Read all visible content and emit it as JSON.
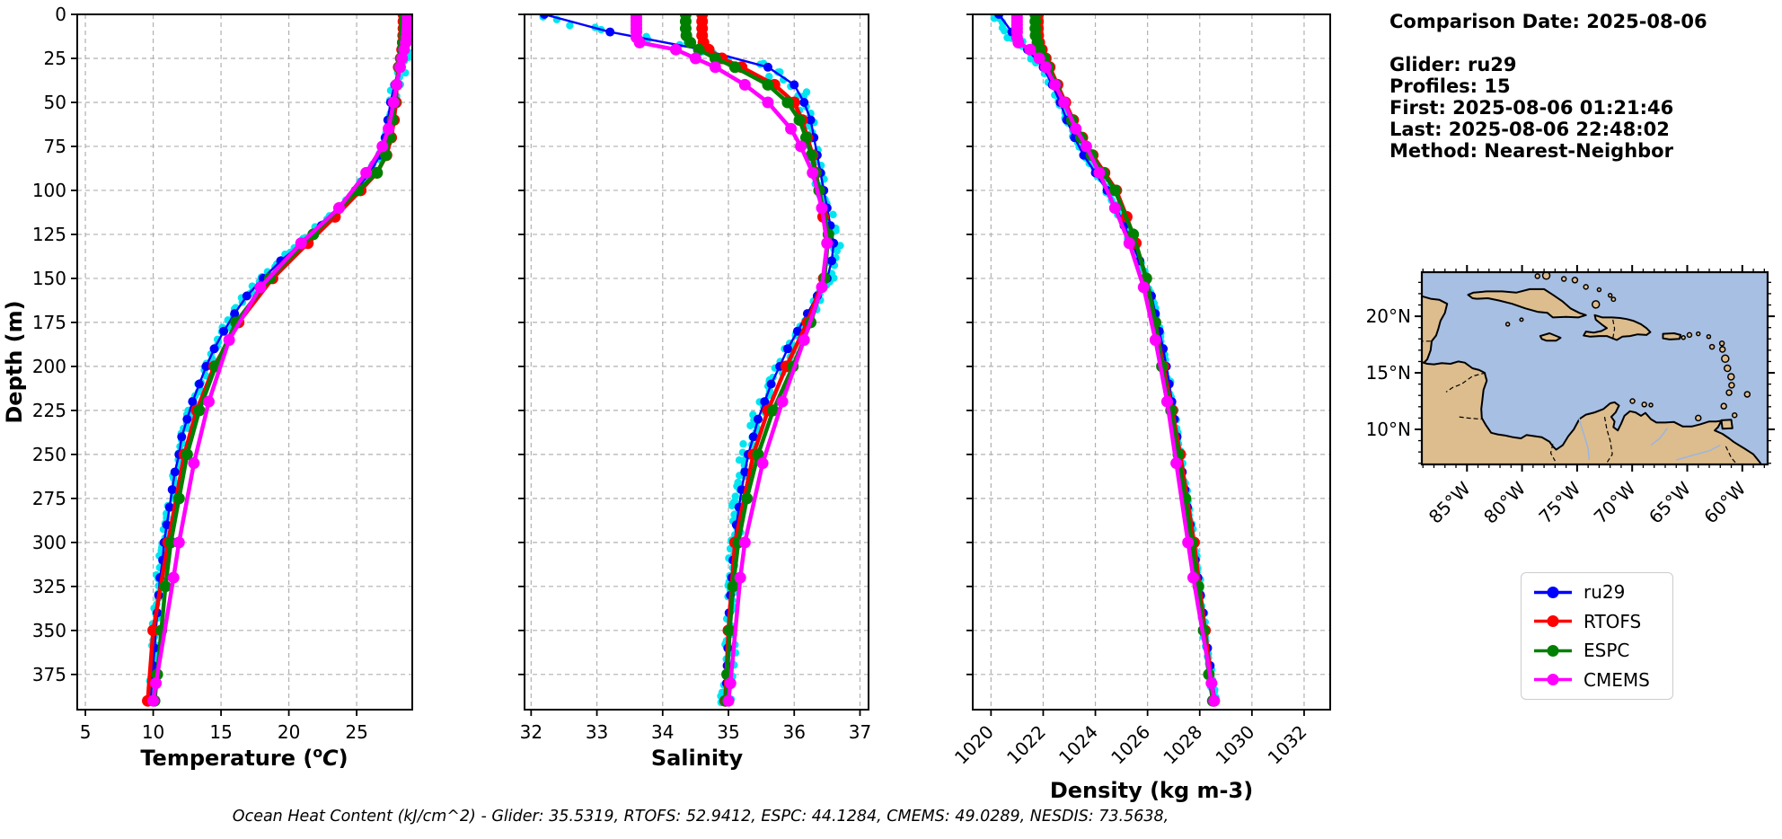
{
  "info": {
    "lines": [
      "Comparison Date: 2025-08-06",
      "",
      "Glider: ru29",
      "Profiles: 15",
      "First: 2025-08-06 01:21:46",
      "Last: 2025-08-06 22:48:02",
      "Method: Nearest-Neighbor"
    ]
  },
  "legend": {
    "items": [
      {
        "label": "ru29",
        "color": "#0000ff"
      },
      {
        "label": "RTOFS",
        "color": "#ff0000"
      },
      {
        "label": "ESPC",
        "color": "#008000"
      },
      {
        "label": "CMEMS",
        "color": "#ff00ff"
      }
    ]
  },
  "footer": {
    "text": "Ocean Heat Content (kJ/cm^2) - Glider: 35.5319,  RTOFS: 52.9412,  ESPC: 44.1284,  CMEMS: 49.0289,  NESDIS: 73.5638,"
  },
  "style": {
    "grid_color": "#b0b0b0",
    "spine_color": "#000000",
    "scatter_color": "#00e5f0"
  },
  "chart_data": [
    {
      "type": "line",
      "id": "temperature",
      "title_parts": [
        {
          "t": "Temperature ("
        },
        {
          "t": "o",
          "sup": true
        },
        {
          "t": "C",
          "italic": true
        },
        {
          "t": ")"
        }
      ],
      "xlim": [
        4.4,
        29.1
      ],
      "xticks": [
        5,
        10,
        15,
        20,
        25
      ],
      "xtick_labels": [
        "5",
        "10",
        "15",
        "20",
        "25"
      ],
      "xtick_rotation": 0,
      "ylabel": "Depth (m)",
      "ylim": [
        0,
        395
      ],
      "yticks": [
        0,
        25,
        50,
        75,
        100,
        125,
        150,
        175,
        200,
        225,
        250,
        275,
        300,
        325,
        350,
        375
      ],
      "ytick_labels": [
        "0",
        "25",
        "50",
        "75",
        "100",
        "125",
        "150",
        "175",
        "200",
        "225",
        "250",
        "275",
        "300",
        "325",
        "350",
        "375"
      ],
      "grid": true,
      "scatter": {
        "name": "glider-raw-points",
        "color": "#00e5f0",
        "amp": 0.22,
        "surface_amp": 0.45
      },
      "series": [
        {
          "name": "ru29",
          "color": "#0000ff",
          "lw": 2.4,
          "mr": 5,
          "depths": [
            0,
            10,
            20,
            30,
            40,
            50,
            60,
            70,
            80,
            90,
            100,
            110,
            120,
            130,
            140,
            150,
            160,
            170,
            180,
            190,
            200,
            210,
            220,
            230,
            240,
            250,
            260,
            270,
            280,
            290,
            300,
            310,
            320,
            330,
            340,
            350,
            360,
            370,
            380,
            390
          ],
          "values": [
            29.1,
            28.9,
            28.5,
            28.1,
            27.8,
            27.5,
            27.3,
            27.1,
            26.7,
            26.0,
            24.9,
            23.7,
            22.4,
            21.0,
            19.4,
            18.1,
            16.9,
            16.0,
            15.2,
            14.5,
            13.9,
            13.4,
            12.9,
            12.5,
            12.1,
            11.9,
            11.6,
            11.4,
            11.2,
            11.0,
            10.8,
            10.7,
            10.5,
            10.4,
            10.3,
            10.2,
            10.1,
            10.0,
            9.9,
            9.8
          ]
        },
        {
          "name": "RTOFS",
          "color": "#ff0000",
          "lw": 4.5,
          "mr": 6.5,
          "depths": [
            0,
            4,
            8,
            12,
            16,
            20,
            25,
            30,
            40,
            50,
            60,
            70,
            80,
            90,
            100,
            115,
            130,
            150,
            175,
            200,
            225,
            250,
            300,
            350,
            390
          ],
          "values": [
            28.45,
            28.45,
            28.45,
            28.43,
            28.4,
            28.35,
            28.25,
            28.1,
            27.95,
            27.9,
            27.75,
            27.55,
            27.2,
            26.5,
            25.3,
            23.4,
            21.4,
            18.8,
            16.3,
            14.5,
            13.2,
            12.3,
            11.1,
            10.0,
            9.6
          ]
        },
        {
          "name": "ESPC",
          "color": "#008000",
          "lw": 4.5,
          "mr": 6.5,
          "depths": [
            0,
            4,
            8,
            12,
            16,
            20,
            25,
            30,
            40,
            50,
            60,
            70,
            80,
            90,
            100,
            125,
            150,
            175,
            200,
            225,
            250,
            275,
            300,
            325,
            350,
            375,
            390
          ],
          "values": [
            28.55,
            28.55,
            28.52,
            28.5,
            28.45,
            28.4,
            28.3,
            28.15,
            27.95,
            27.8,
            27.65,
            27.45,
            27.15,
            26.5,
            25.1,
            21.8,
            18.6,
            16.1,
            14.6,
            13.4,
            12.5,
            11.9,
            11.3,
            10.9,
            10.6,
            10.3,
            10.1
          ]
        },
        {
          "name": "CMEMS",
          "color": "#ff00ff",
          "lw": 4.5,
          "mr": 6.5,
          "depths": [
            0,
            2,
            4,
            6,
            8,
            10,
            13,
            16,
            20,
            25,
            30,
            40,
            50,
            65,
            75,
            90,
            110,
            130,
            155,
            185,
            220,
            255,
            300,
            320,
            380,
            390
          ],
          "values": [
            28.75,
            28.75,
            28.75,
            28.75,
            28.73,
            28.7,
            28.67,
            28.62,
            28.5,
            28.35,
            28.2,
            27.95,
            27.72,
            27.35,
            26.9,
            25.7,
            23.7,
            20.9,
            17.9,
            15.6,
            14.1,
            13.0,
            11.9,
            11.5,
            10.2,
            10.0
          ]
        }
      ]
    },
    {
      "type": "line",
      "id": "salinity",
      "title_parts": [
        {
          "t": "Salinity"
        }
      ],
      "xlim": [
        31.9,
        37.13
      ],
      "xticks": [
        32,
        33,
        34,
        35,
        36,
        37
      ],
      "xtick_labels": [
        "32",
        "33",
        "34",
        "35",
        "36",
        "37"
      ],
      "xtick_rotation": 0,
      "ylabel": null,
      "ylim": [
        0,
        395
      ],
      "yticks": [
        0,
        25,
        50,
        75,
        100,
        125,
        150,
        175,
        200,
        225,
        250,
        275,
        300,
        325,
        350,
        375
      ],
      "ytick_labels": null,
      "grid": true,
      "scatter": {
        "name": "glider-raw-points",
        "color": "#00e5f0",
        "amp": 0.09,
        "surface_amp": 0.28
      },
      "series": [
        {
          "name": "ru29",
          "color": "#0000ff",
          "lw": 2.4,
          "mr": 5,
          "depths": [
            0,
            10,
            20,
            30,
            40,
            50,
            60,
            70,
            80,
            90,
            100,
            110,
            120,
            130,
            140,
            150,
            160,
            170,
            180,
            190,
            200,
            210,
            220,
            230,
            240,
            250,
            260,
            270,
            280,
            290,
            300,
            310,
            320,
            330,
            340,
            350,
            360,
            370,
            380,
            390
          ],
          "values": [
            32.2,
            33.2,
            34.6,
            35.6,
            36.0,
            36.15,
            36.25,
            36.3,
            36.35,
            36.4,
            36.45,
            36.5,
            36.55,
            36.6,
            36.57,
            36.5,
            36.35,
            36.2,
            36.05,
            35.9,
            35.78,
            35.65,
            35.55,
            35.45,
            35.38,
            35.3,
            35.25,
            35.2,
            35.16,
            35.12,
            35.1,
            35.07,
            35.05,
            35.03,
            35.01,
            35.0,
            34.99,
            34.98,
            34.97,
            34.96
          ]
        },
        {
          "name": "RTOFS",
          "color": "#ff0000",
          "lw": 4.5,
          "mr": 6.5,
          "depths": [
            0,
            4,
            8,
            12,
            16,
            20,
            25,
            30,
            40,
            50,
            60,
            70,
            80,
            90,
            100,
            115,
            130,
            150,
            175,
            200,
            225,
            250,
            300,
            350,
            390
          ],
          "values": [
            34.6,
            34.6,
            34.6,
            34.6,
            34.62,
            34.7,
            34.9,
            35.2,
            35.7,
            36.0,
            36.12,
            36.2,
            36.28,
            36.33,
            36.38,
            36.44,
            36.5,
            36.45,
            36.2,
            35.88,
            35.6,
            35.38,
            35.1,
            35.0,
            34.95
          ]
        },
        {
          "name": "ESPC",
          "color": "#008000",
          "lw": 4.5,
          "mr": 6.5,
          "depths": [
            0,
            4,
            8,
            12,
            16,
            20,
            25,
            30,
            40,
            50,
            60,
            70,
            80,
            90,
            100,
            125,
            150,
            175,
            200,
            225,
            250,
            275,
            300,
            325,
            350,
            375,
            390
          ],
          "values": [
            34.35,
            34.35,
            34.35,
            34.36,
            34.42,
            34.55,
            34.8,
            35.1,
            35.6,
            35.9,
            36.08,
            36.18,
            36.26,
            36.32,
            36.38,
            36.52,
            36.46,
            36.25,
            35.98,
            35.68,
            35.45,
            35.28,
            35.15,
            35.07,
            35.02,
            34.98,
            34.96
          ]
        },
        {
          "name": "CMEMS",
          "color": "#ff00ff",
          "lw": 4.5,
          "mr": 6.5,
          "depths": [
            0,
            2,
            4,
            6,
            8,
            10,
            13,
            16,
            20,
            25,
            30,
            40,
            50,
            65,
            75,
            90,
            110,
            130,
            155,
            185,
            220,
            255,
            300,
            320,
            380,
            390
          ],
          "values": [
            33.6,
            33.6,
            33.6,
            33.6,
            33.6,
            33.6,
            33.6,
            33.65,
            34.2,
            34.5,
            34.8,
            35.25,
            35.6,
            35.95,
            36.1,
            36.28,
            36.42,
            36.5,
            36.42,
            36.15,
            35.82,
            35.52,
            35.25,
            35.18,
            35.03,
            35.0
          ]
        }
      ]
    },
    {
      "type": "line",
      "id": "density",
      "title_parts": [
        {
          "t": "Density (kg m-3)"
        }
      ],
      "xlim": [
        1019.3,
        1033.0
      ],
      "xticks": [
        1020,
        1022,
        1024,
        1026,
        1028,
        1030,
        1032
      ],
      "xtick_labels": [
        "1020",
        "1022",
        "1024",
        "1026",
        "1028",
        "1030",
        "1032"
      ],
      "xtick_rotation": 45,
      "ylabel": null,
      "ylim": [
        0,
        395
      ],
      "yticks": [
        0,
        25,
        50,
        75,
        100,
        125,
        150,
        175,
        200,
        225,
        250,
        275,
        300,
        325,
        350,
        375
      ],
      "ytick_labels": null,
      "grid": true,
      "scatter": {
        "name": "glider-raw-points",
        "color": "#00e5f0",
        "amp": 0.08,
        "surface_amp": 0.2
      },
      "series": [
        {
          "name": "ru29",
          "color": "#0000ff",
          "lw": 2.4,
          "mr": 5,
          "depths": [
            0,
            10,
            20,
            30,
            40,
            50,
            60,
            70,
            80,
            90,
            100,
            110,
            120,
            130,
            140,
            150,
            160,
            170,
            180,
            190,
            200,
            210,
            220,
            230,
            240,
            250,
            260,
            270,
            280,
            290,
            300,
            310,
            320,
            330,
            340,
            350,
            360,
            370,
            380,
            390
          ],
          "values": [
            1020.3,
            1020.8,
            1021.4,
            1022.0,
            1022.35,
            1022.65,
            1022.9,
            1023.2,
            1023.55,
            1024.0,
            1024.45,
            1024.8,
            1025.1,
            1025.4,
            1025.7,
            1025.95,
            1026.15,
            1026.3,
            1026.45,
            1026.6,
            1026.72,
            1026.83,
            1026.93,
            1027.03,
            1027.13,
            1027.23,
            1027.33,
            1027.43,
            1027.53,
            1027.63,
            1027.73,
            1027.83,
            1027.93,
            1028.03,
            1028.13,
            1028.2,
            1028.3,
            1028.4,
            1028.5,
            1028.6
          ]
        },
        {
          "name": "RTOFS",
          "color": "#ff0000",
          "lw": 4.5,
          "mr": 6.5,
          "depths": [
            0,
            4,
            8,
            12,
            16,
            20,
            25,
            30,
            40,
            50,
            60,
            70,
            80,
            90,
            100,
            115,
            130,
            150,
            175,
            200,
            225,
            250,
            300,
            350,
            390
          ],
          "values": [
            1021.8,
            1021.8,
            1021.8,
            1021.81,
            1021.85,
            1021.95,
            1022.1,
            1022.25,
            1022.55,
            1022.85,
            1023.15,
            1023.5,
            1023.9,
            1024.35,
            1024.8,
            1025.2,
            1025.55,
            1025.95,
            1026.3,
            1026.6,
            1026.95,
            1027.25,
            1027.78,
            1028.2,
            1028.55
          ]
        },
        {
          "name": "ESPC",
          "color": "#008000",
          "lw": 4.5,
          "mr": 6.5,
          "depths": [
            0,
            4,
            8,
            12,
            16,
            20,
            25,
            30,
            40,
            50,
            60,
            70,
            80,
            90,
            100,
            125,
            150,
            175,
            200,
            225,
            250,
            275,
            300,
            325,
            350,
            375,
            390
          ],
          "values": [
            1021.7,
            1021.7,
            1021.7,
            1021.71,
            1021.78,
            1021.88,
            1022.05,
            1022.2,
            1022.5,
            1022.8,
            1023.1,
            1023.45,
            1023.85,
            1024.3,
            1024.75,
            1025.45,
            1025.95,
            1026.3,
            1026.55,
            1026.9,
            1027.18,
            1027.45,
            1027.7,
            1027.95,
            1028.15,
            1028.35,
            1028.5
          ]
        },
        {
          "name": "CMEMS",
          "color": "#ff00ff",
          "lw": 4.5,
          "mr": 6.5,
          "depths": [
            0,
            2,
            4,
            6,
            8,
            10,
            13,
            16,
            20,
            25,
            30,
            40,
            50,
            65,
            75,
            90,
            110,
            130,
            155,
            185,
            220,
            255,
            300,
            320,
            380,
            390
          ],
          "values": [
            1021.0,
            1021.0,
            1021.0,
            1021.0,
            1021.0,
            1021.0,
            1021.0,
            1021.05,
            1021.5,
            1021.85,
            1022.1,
            1022.45,
            1022.8,
            1023.25,
            1023.65,
            1024.15,
            1024.75,
            1025.3,
            1025.85,
            1026.3,
            1026.75,
            1027.1,
            1027.55,
            1027.75,
            1028.45,
            1028.55
          ]
        }
      ]
    }
  ],
  "map": {
    "lon_range": [
      -89.1,
      -57.7
    ],
    "lat_range": [
      6.9,
      23.9
    ],
    "lon_ticks": [
      -85,
      -80,
      -75,
      -70,
      -65,
      -60
    ],
    "lon_tick_labels": [
      "85°W",
      "80°W",
      "75°W",
      "70°W",
      "65°W",
      "60°W"
    ],
    "lat_ticks": [
      20,
      15,
      10
    ],
    "lat_tick_labels": [
      "20°N",
      "15°N",
      "10°N"
    ],
    "sea_color": "#a7bfe3",
    "land_color": "#ddbd8d",
    "coast_color": "#000000"
  }
}
